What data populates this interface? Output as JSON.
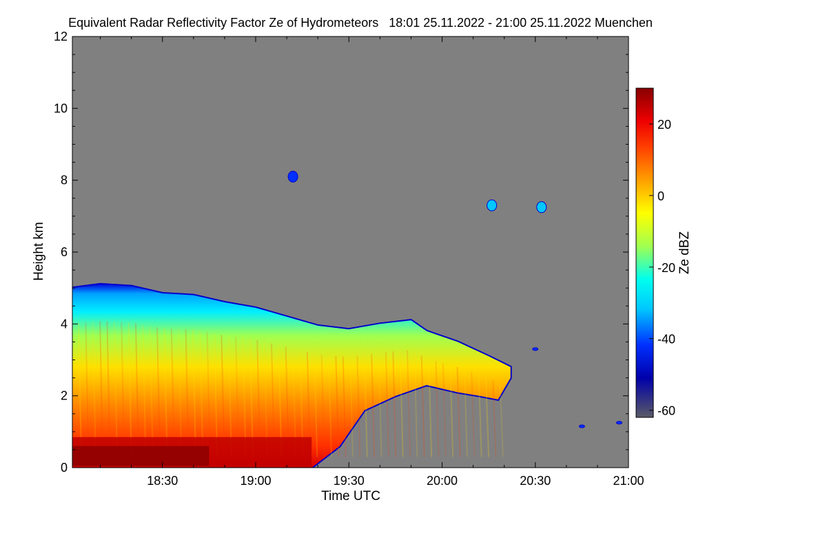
{
  "chart_data": {
    "type": "heatmap",
    "title": "Equivalent Radar Reflectivity Factor Ze of Hydrometeors   18:01 25.11.2022 - 21:00 25.11.2022 Muenchen",
    "xlabel": "Time UTC",
    "ylabel": "Height km",
    "colorbar_label": "Ze dBZ",
    "x_ticks": [
      "18:30",
      "19:00",
      "19:30",
      "20:00",
      "20:30",
      "21:00"
    ],
    "x_tick_minutes": [
      30,
      60,
      90,
      120,
      150,
      180
    ],
    "x_range_minutes": [
      1,
      180
    ],
    "y_ticks": [
      "0",
      "2",
      "4",
      "6",
      "8",
      "10",
      "12"
    ],
    "y_tick_values": [
      0,
      2,
      4,
      6,
      8,
      10,
      12
    ],
    "ylim": [
      0,
      12
    ],
    "colorbar_ticks": [
      "20",
      "0",
      "-20",
      "-40",
      "-60"
    ],
    "colorbar_tick_values": [
      20,
      0,
      -20,
      -40,
      -60
    ],
    "colorbar_range": [
      -62,
      30
    ],
    "background_color": "#808080",
    "colormap": [
      "#5a5a66",
      "#0000aa",
      "#0030ff",
      "#00c8ff",
      "#00ffee",
      "#a0ff50",
      "#ffff00",
      "#ffa000",
      "#ff4000",
      "#ee0000",
      "#880000"
    ],
    "echo_top_km": [
      {
        "t": 1,
        "top": 5.0
      },
      {
        "t": 10,
        "top": 5.1
      },
      {
        "t": 20,
        "top": 5.05
      },
      {
        "t": 30,
        "top": 4.85
      },
      {
        "t": 40,
        "top": 4.8
      },
      {
        "t": 50,
        "top": 4.6
      },
      {
        "t": 60,
        "top": 4.45
      },
      {
        "t": 70,
        "top": 4.2
      },
      {
        "t": 80,
        "top": 3.95
      },
      {
        "t": 90,
        "top": 3.85
      },
      {
        "t": 100,
        "top": 4.0
      },
      {
        "t": 110,
        "top": 4.1
      },
      {
        "t": 115,
        "top": 3.8
      },
      {
        "t": 125,
        "top": 3.5
      },
      {
        "t": 135,
        "top": 3.1
      },
      {
        "t": 142,
        "top": 2.8
      }
    ],
    "echo_base_km": [
      {
        "t": 1,
        "base": 0
      },
      {
        "t": 78,
        "base": 0
      },
      {
        "t": 87,
        "base": 0.6
      },
      {
        "t": 95,
        "base": 1.6
      },
      {
        "t": 105,
        "base": 2.0
      },
      {
        "t": 115,
        "base": 2.3
      },
      {
        "t": 125,
        "base": 2.1
      },
      {
        "t": 132,
        "base": 2.0
      },
      {
        "t": 138,
        "base": 1.9
      },
      {
        "t": 142,
        "base": 2.5
      }
    ],
    "clutter_band_km": [
      0,
      0.85
    ],
    "isolated_echoes": [
      {
        "t": 72,
        "h": 8.1,
        "dbz": -40
      },
      {
        "t": 136,
        "h": 7.3,
        "dbz": -25
      },
      {
        "t": 152,
        "h": 7.25,
        "dbz": -25
      },
      {
        "t": 150,
        "h": 3.3,
        "dbz": -40
      },
      {
        "t": 165,
        "h": 1.15,
        "dbz": -40
      },
      {
        "t": 177,
        "h": 1.25,
        "dbz": -40
      }
    ]
  }
}
